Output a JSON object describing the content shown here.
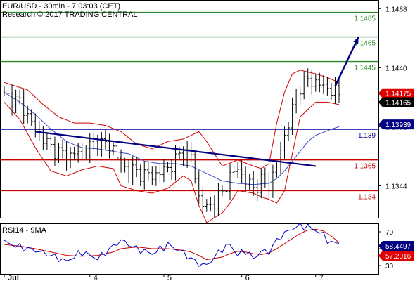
{
  "header": {
    "line1": "EUR/USD - 30min - 7:03:03 (CET)",
    "line2": "Research © 2017 TRADING CENTRAL"
  },
  "colors": {
    "background": "#ffffff",
    "grid": "#dcdcdc",
    "candle": "#000000",
    "bollinger": "#d40000",
    "ma": "#3c50c8",
    "resistance": "#2a8a2a",
    "support": "#c80000",
    "pivot": "#0000a0",
    "trendline": "#000080",
    "arrow": "#000080",
    "rsi": "#0000c8",
    "rsi_ma": "#c80000",
    "badge_red": "#e00000",
    "badge_black": "#000000",
    "badge_navy": "#000080"
  },
  "chart_data": [
    {
      "type": "candlestick",
      "title": "EUR/USD - 30min - 7:03:03 (CET)",
      "ylim": [
        1.1318,
        1.1495
      ],
      "yticks": [
        "1.1488",
        "1.1440",
        "1.1392",
        "1.1344"
      ],
      "xticks": [
        "Jul",
        "4",
        "5",
        "6",
        "7"
      ],
      "levels": [
        {
          "label": "1.1485",
          "value": 1.1485,
          "role": "resistance"
        },
        {
          "label": "1.1465",
          "value": 1.1465,
          "role": "resistance"
        },
        {
          "label": "1.1445",
          "value": 1.1445,
          "role": "resistance"
        },
        {
          "label": "1.139",
          "value": 1.139,
          "role": "pivot"
        },
        {
          "label": "1.1365",
          "value": 1.1365,
          "role": "support"
        },
        {
          "label": "1.134",
          "value": 1.134,
          "role": "support"
        }
      ],
      "badges": [
        {
          "label": "1.14175",
          "value": 1.14175,
          "style": "red"
        },
        {
          "label": "1.14165",
          "value": 1.14165,
          "style": "black"
        },
        {
          "label": "1.13939",
          "value": 1.13939,
          "style": "navy"
        }
      ],
      "trendline": {
        "start": [
          8,
          1.1388
        ],
        "end": [
          80,
          1.136
        ]
      },
      "arrow": {
        "start": [
          85,
          1.1425
        ],
        "end": [
          91,
          1.1465
        ]
      },
      "bars": 87,
      "close_path": [
        [
          0,
          1.1418
        ],
        [
          4,
          1.1412
        ],
        [
          8,
          1.139
        ],
        [
          12,
          1.1375
        ],
        [
          16,
          1.1368
        ],
        [
          20,
          1.1372
        ],
        [
          24,
          1.138
        ],
        [
          28,
          1.1375
        ],
        [
          30,
          1.136
        ],
        [
          34,
          1.1355
        ],
        [
          38,
          1.1352
        ],
        [
          42,
          1.1358
        ],
        [
          46,
          1.1372
        ],
        [
          48,
          1.1368
        ],
        [
          50,
          1.1335
        ],
        [
          52,
          1.1325
        ],
        [
          56,
          1.1338
        ],
        [
          58,
          1.1352
        ],
        [
          60,
          1.1358
        ],
        [
          62,
          1.1348
        ],
        [
          64,
          1.1342
        ],
        [
          66,
          1.1348
        ],
        [
          68,
          1.1345
        ],
        [
          70,
          1.136
        ],
        [
          72,
          1.1385
        ],
        [
          74,
          1.1405
        ],
        [
          76,
          1.1425
        ],
        [
          78,
          1.143
        ],
        [
          80,
          1.1428
        ],
        [
          84,
          1.1422
        ],
        [
          86,
          1.1418
        ]
      ],
      "series": [
        {
          "name": "bollinger_upper",
          "values": [
            [
              0,
              1.1428
            ],
            [
              6,
              1.1422
            ],
            [
              10,
              1.141
            ],
            [
              14,
              1.14
            ],
            [
              18,
              1.1395
            ],
            [
              22,
              1.1395
            ],
            [
              26,
              1.1393
            ],
            [
              30,
              1.1388
            ],
            [
              34,
              1.1378
            ],
            [
              38,
              1.1374
            ],
            [
              42,
              1.138
            ],
            [
              46,
              1.1382
            ],
            [
              48,
              1.1385
            ],
            [
              50,
              1.1388
            ],
            [
              52,
              1.138
            ],
            [
              56,
              1.136
            ],
            [
              60,
              1.1365
            ],
            [
              64,
              1.136
            ],
            [
              66,
              1.1358
            ],
            [
              68,
              1.1362
            ],
            [
              70,
              1.1395
            ],
            [
              72,
              1.142
            ],
            [
              74,
              1.1435
            ],
            [
              76,
              1.1438
            ],
            [
              80,
              1.1435
            ],
            [
              83,
              1.1432
            ],
            [
              86,
              1.1428
            ]
          ]
        },
        {
          "name": "bollinger_lower",
          "values": [
            [
              0,
              1.1412
            ],
            [
              4,
              1.1398
            ],
            [
              8,
              1.1375
            ],
            [
              12,
              1.1356
            ],
            [
              16,
              1.1352
            ],
            [
              20,
              1.1357
            ],
            [
              24,
              1.136
            ],
            [
              28,
              1.1358
            ],
            [
              30,
              1.1344
            ],
            [
              34,
              1.134
            ],
            [
              38,
              1.1338
            ],
            [
              42,
              1.1342
            ],
            [
              46,
              1.1352
            ],
            [
              48,
              1.1348
            ],
            [
              50,
              1.1328
            ],
            [
              52,
              1.1314
            ],
            [
              56,
              1.1322
            ],
            [
              58,
              1.133
            ],
            [
              60,
              1.134
            ],
            [
              64,
              1.1338
            ],
            [
              66,
              1.1335
            ],
            [
              68,
              1.1333
            ],
            [
              70,
              1.133
            ],
            [
              72,
              1.134
            ],
            [
              74,
              1.137
            ],
            [
              76,
              1.14
            ],
            [
              80,
              1.1412
            ],
            [
              83,
              1.1412
            ],
            [
              86,
              1.141
            ]
          ]
        },
        {
          "name": "moving_average",
          "values": [
            [
              0,
              1.142
            ],
            [
              4,
              1.1412
            ],
            [
              8,
              1.1402
            ],
            [
              12,
              1.139
            ],
            [
              16,
              1.138
            ],
            [
              20,
              1.1375
            ],
            [
              24,
              1.1374
            ],
            [
              28,
              1.1372
            ],
            [
              32,
              1.137
            ],
            [
              36,
              1.1364
            ],
            [
              40,
              1.1362
            ],
            [
              44,
              1.1362
            ],
            [
              48,
              1.136
            ],
            [
              52,
              1.1354
            ],
            [
              56,
              1.1348
            ],
            [
              60,
              1.1346
            ],
            [
              64,
              1.1345
            ],
            [
              68,
              1.1346
            ],
            [
              70,
              1.135
            ],
            [
              72,
              1.1356
            ],
            [
              74,
              1.1364
            ],
            [
              76,
              1.1372
            ],
            [
              78,
              1.138
            ],
            [
              80,
              1.1385
            ],
            [
              84,
              1.139
            ],
            [
              86,
              1.1392
            ]
          ]
        }
      ]
    },
    {
      "type": "line",
      "title": "RSI14 - 9MA",
      "ylim": [
        20,
        80
      ],
      "yticks": [
        "70",
        "50",
        "30"
      ],
      "badges": [
        {
          "label": "58.4497",
          "value": 58.4497,
          "style": "navy"
        },
        {
          "label": "57.2016",
          "value": 57.2016,
          "style": "red"
        }
      ],
      "series": [
        {
          "name": "RSI14",
          "values": [
            [
              0,
              58
            ],
            [
              4,
              52
            ],
            [
              8,
              48
            ],
            [
              12,
              42
            ],
            [
              16,
              35
            ],
            [
              20,
              46
            ],
            [
              24,
              38
            ],
            [
              28,
              53
            ],
            [
              30,
              60
            ],
            [
              34,
              50
            ],
            [
              38,
              44
            ],
            [
              42,
              55
            ],
            [
              46,
              45
            ],
            [
              48,
              38
            ],
            [
              50,
              32
            ],
            [
              52,
              30
            ],
            [
              56,
              50
            ],
            [
              58,
              55
            ],
            [
              60,
              42
            ],
            [
              62,
              48
            ],
            [
              64,
              38
            ],
            [
              66,
              47
            ],
            [
              68,
              46
            ],
            [
              70,
              60
            ],
            [
              72,
              68
            ],
            [
              74,
              74
            ],
            [
              76,
              77
            ],
            [
              78,
              76
            ],
            [
              80,
              72
            ],
            [
              82,
              66
            ],
            [
              84,
              56
            ],
            [
              86,
              58
            ]
          ]
        },
        {
          "name": "9MA",
          "values": [
            [
              0,
              55
            ],
            [
              4,
              53
            ],
            [
              8,
              50
            ],
            [
              12,
              46
            ],
            [
              16,
              42
            ],
            [
              20,
              41
            ],
            [
              24,
              42
            ],
            [
              28,
              46
            ],
            [
              30,
              50
            ],
            [
              34,
              52
            ],
            [
              38,
              50
            ],
            [
              42,
              50
            ],
            [
              46,
              48
            ],
            [
              48,
              46
            ],
            [
              50,
              42
            ],
            [
              52,
              37
            ],
            [
              56,
              40
            ],
            [
              58,
              44
            ],
            [
              60,
              47
            ],
            [
              62,
              46
            ],
            [
              64,
              44
            ],
            [
              66,
              43
            ],
            [
              68,
              45
            ],
            [
              70,
              50
            ],
            [
              72,
              56
            ],
            [
              74,
              62
            ],
            [
              76,
              68
            ],
            [
              78,
              72
            ],
            [
              80,
              73
            ],
            [
              82,
              71
            ],
            [
              84,
              65
            ],
            [
              86,
              57
            ]
          ]
        }
      ]
    }
  ]
}
